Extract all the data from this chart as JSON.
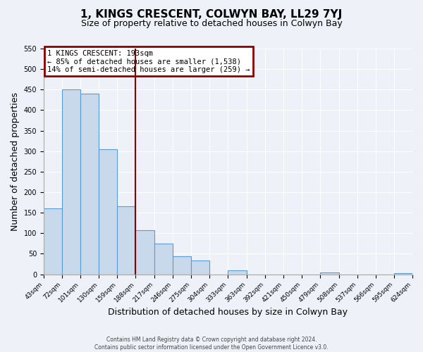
{
  "title": "1, KINGS CRESCENT, COLWYN BAY, LL29 7YJ",
  "subtitle": "Size of property relative to detached houses in Colwyn Bay",
  "xlabel": "Distribution of detached houses by size in Colwyn Bay",
  "ylabel": "Number of detached properties",
  "bar_edges": [
    43,
    72,
    101,
    130,
    159,
    188,
    217,
    246,
    275,
    304,
    333,
    363,
    392,
    421,
    450,
    479,
    508,
    537,
    566,
    595,
    624
  ],
  "bar_heights": [
    160,
    450,
    440,
    305,
    165,
    108,
    75,
    44,
    33,
    0,
    10,
    0,
    0,
    0,
    0,
    5,
    0,
    0,
    0,
    3
  ],
  "bar_color": "#c8d9ec",
  "bar_edge_color": "#5b9bd5",
  "vline_x": 188,
  "vline_color": "#8b0000",
  "ylim": [
    0,
    550
  ],
  "yticks": [
    0,
    50,
    100,
    150,
    200,
    250,
    300,
    350,
    400,
    450,
    500,
    550
  ],
  "annotation_title": "1 KINGS CRESCENT: 193sqm",
  "annotation_line1": "← 85% of detached houses are smaller (1,538)",
  "annotation_line2": "14% of semi-detached houses are larger (259) →",
  "annotation_box_color": "#8b0000",
  "footer_line1": "Contains HM Land Registry data © Crown copyright and database right 2024.",
  "footer_line2": "Contains public sector information licensed under the Open Government Licence v3.0.",
  "background_color": "#eef2f8",
  "plot_bg_color": "#eef2f8",
  "grid_color": "#ffffff",
  "title_fontsize": 11,
  "subtitle_fontsize": 9,
  "xlabel_fontsize": 9,
  "ylabel_fontsize": 9,
  "footer_fontsize": 5.5
}
